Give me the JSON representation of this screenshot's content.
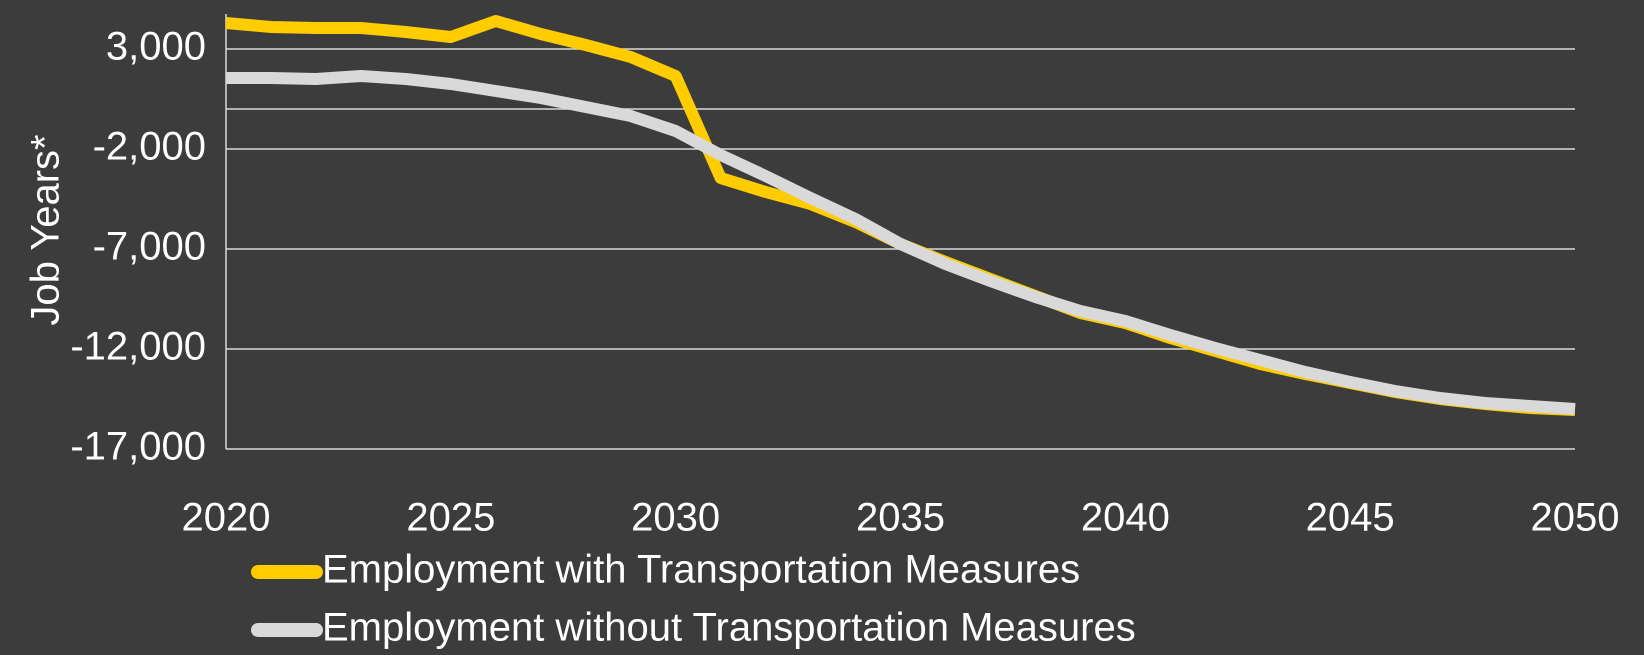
{
  "chart_data": {
    "type": "line",
    "y_label": "Job Years*",
    "x": [
      2020,
      2021,
      2022,
      2023,
      2024,
      2025,
      2026,
      2027,
      2028,
      2029,
      2030,
      2031,
      2032,
      2033,
      2034,
      2035,
      2036,
      2037,
      2038,
      2039,
      2040,
      2041,
      2042,
      2043,
      2044,
      2045,
      2046,
      2047,
      2048,
      2049,
      2050
    ],
    "series": [
      {
        "name": "Employment with Transportation Measures",
        "color": "#ffcc00",
        "values": [
          4300,
          4100,
          4050,
          4050,
          3850,
          3600,
          4400,
          3750,
          3200,
          2600,
          1650,
          -3450,
          -4150,
          -4750,
          -5650,
          -6750,
          -7650,
          -8500,
          -9350,
          -10200,
          -10700,
          -11450,
          -12100,
          -12750,
          -13250,
          -13700,
          -14150,
          -14500,
          -14750,
          -14950,
          -15050
        ]
      },
      {
        "name": "Employment without Transportation Measures",
        "color": "#d9d9d9",
        "values": [
          1550,
          1550,
          1500,
          1650,
          1500,
          1250,
          900,
          550,
          100,
          -350,
          -1100,
          -2300,
          -3350,
          -4450,
          -5500,
          -6750,
          -7750,
          -8600,
          -9400,
          -10100,
          -10600,
          -11300,
          -11950,
          -12550,
          -13150,
          -13650,
          -14100,
          -14450,
          -14700,
          -14850,
          -15000
        ]
      }
    ],
    "xlim": [
      2020,
      2050
    ],
    "xticks": [
      2020,
      2025,
      2030,
      2035,
      2040,
      2045,
      2050
    ],
    "ylim": [
      -17000,
      5000
    ],
    "yticks": [
      {
        "value": 3000,
        "label": "3,000"
      },
      {
        "value": -2000,
        "label": "-2,000"
      },
      {
        "value": -7000,
        "label": "-7,000"
      },
      {
        "value": -12000,
        "label": "-12,000"
      },
      {
        "value": -17000,
        "label": "-17,000"
      }
    ],
    "grid": true
  }
}
